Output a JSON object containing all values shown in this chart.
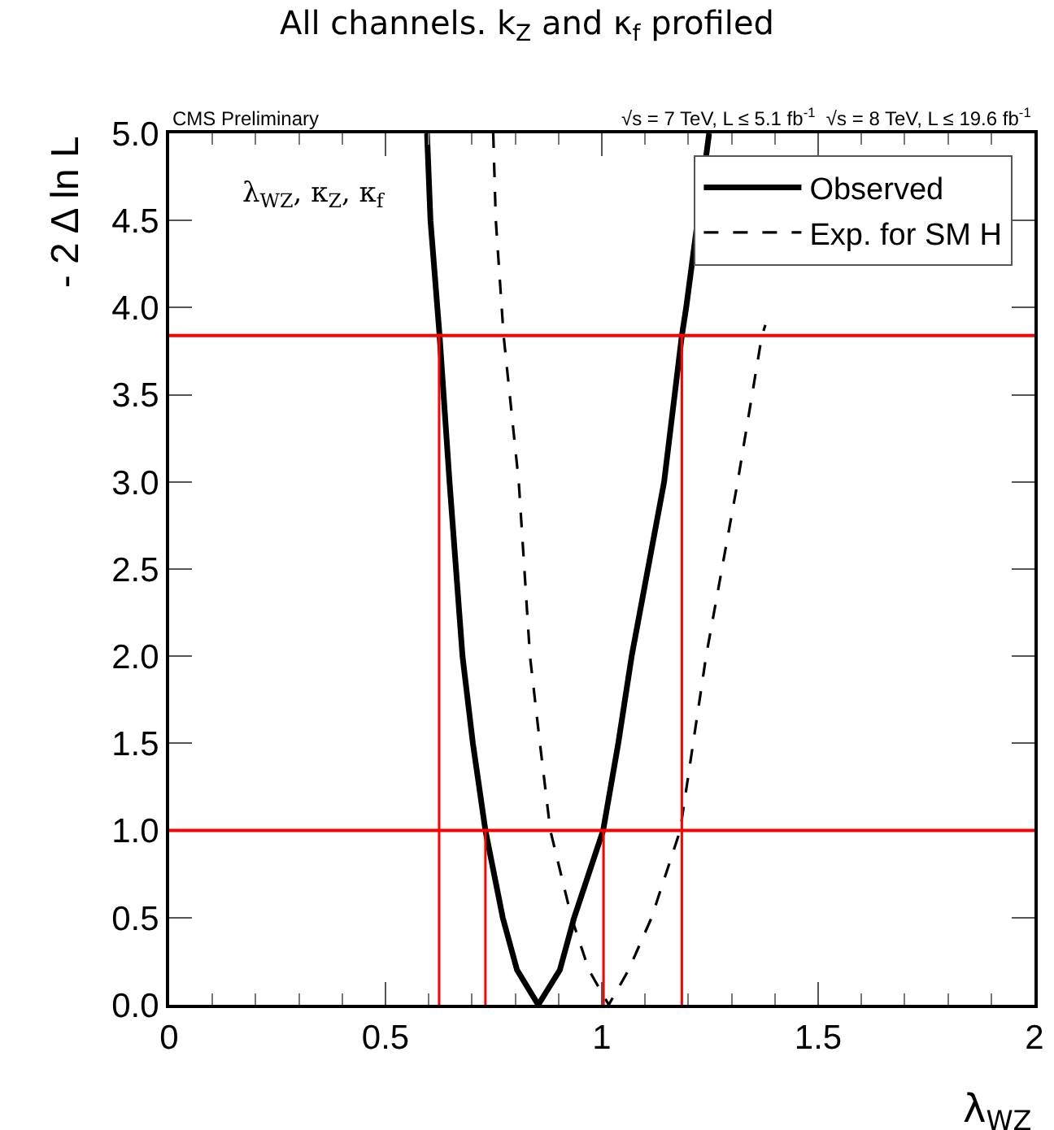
{
  "chart_data": {
    "type": "line",
    "title": "All channels. k$_{Z}$ and κ$_{f}$ profiled",
    "xlabel": "λ$_{WZ}$",
    "ylabel": "- 2 Δ ln L",
    "annotations": [
      "CMS Preliminary",
      "√s = 7 TeV, L ≤ 5.1 fb$^{-1}$  √s = 8 TeV, L ≤ 19.6 fb$^{-1}$",
      "λ$_{WZ}$, κ$_{Z}$, κ$_{f}$"
    ],
    "xlim": [
      0,
      2
    ],
    "xticks": [
      0,
      0.5,
      1,
      1.5,
      2
    ],
    "ylim": [
      0,
      5
    ],
    "yticks": [
      {
        "value": 0,
        "label": "0.0"
      },
      {
        "value": 0.5,
        "label": "0.5"
      },
      {
        "value": 1,
        "label": "1.0"
      },
      {
        "value": 1.5,
        "label": "1.5"
      },
      {
        "value": 2,
        "label": "2.0"
      },
      {
        "value": 2.5,
        "label": "2.5"
      },
      {
        "value": 3,
        "label": "3.0"
      },
      {
        "value": 3.5,
        "label": "3.5"
      },
      {
        "value": 4,
        "label": "4.0"
      },
      {
        "value": 4.5,
        "label": "4.5"
      },
      {
        "value": 5,
        "label": "5.0"
      }
    ],
    "legend": "top right",
    "marker": "none",
    "series": [
      {
        "name": "Observed",
        "color": "#000000",
        "line_style": "solid",
        "x": [
          0.596,
          0.604,
          0.625,
          0.648,
          0.678,
          0.702,
          0.731,
          0.771,
          0.804,
          0.853,
          0.903,
          0.936,
          1.003,
          1.038,
          1.069,
          1.144,
          1.185,
          1.195,
          1.248
        ],
        "values": [
          5,
          4.5,
          3.84,
          3,
          2,
          1.5,
          1,
          0.5,
          0.2,
          0,
          0.2,
          0.5,
          1,
          1.5,
          2,
          3,
          3.84,
          4,
          5
        ]
      },
      {
        "name": "Exp. for SM H",
        "color": "#000000",
        "line_style": "dashed",
        "x": [
          0.749,
          0.755,
          0.773,
          0.808,
          0.834,
          0.857,
          0.881,
          0.93,
          0.97,
          1.016,
          1.062,
          1.115,
          1.181,
          1.241,
          1.314,
          1.37,
          1.378
        ],
        "values": [
          5,
          4.5,
          3.84,
          3,
          2,
          1.5,
          1,
          0.5,
          0.2,
          0,
          0.2,
          0.5,
          1,
          2,
          3,
          3.84,
          3.9
        ]
      },
      {
        "color": "#ff0000",
        "line_style": "solid",
        "x": [
          0.624,
          0.624
        ],
        "values": [
          0,
          3.84
        ]
      },
      {
        "color": "#ff0000",
        "line_style": "solid",
        "x": [
          0.731,
          0.731
        ],
        "values": [
          0,
          1
        ]
      },
      {
        "color": "#ff0000",
        "line_style": "solid",
        "x": [
          1.004,
          1.004
        ],
        "values": [
          0,
          1
        ]
      },
      {
        "color": "#ff0000",
        "line_style": "solid",
        "x": [
          1.185,
          1.185
        ],
        "values": [
          0,
          3.84
        ]
      }
    ],
    "ref_lines": [
      {
        "axis": "y",
        "value": 1,
        "color": "#ff0000"
      },
      {
        "axis": "y",
        "value": 3.84,
        "color": "#ff0000"
      }
    ]
  }
}
